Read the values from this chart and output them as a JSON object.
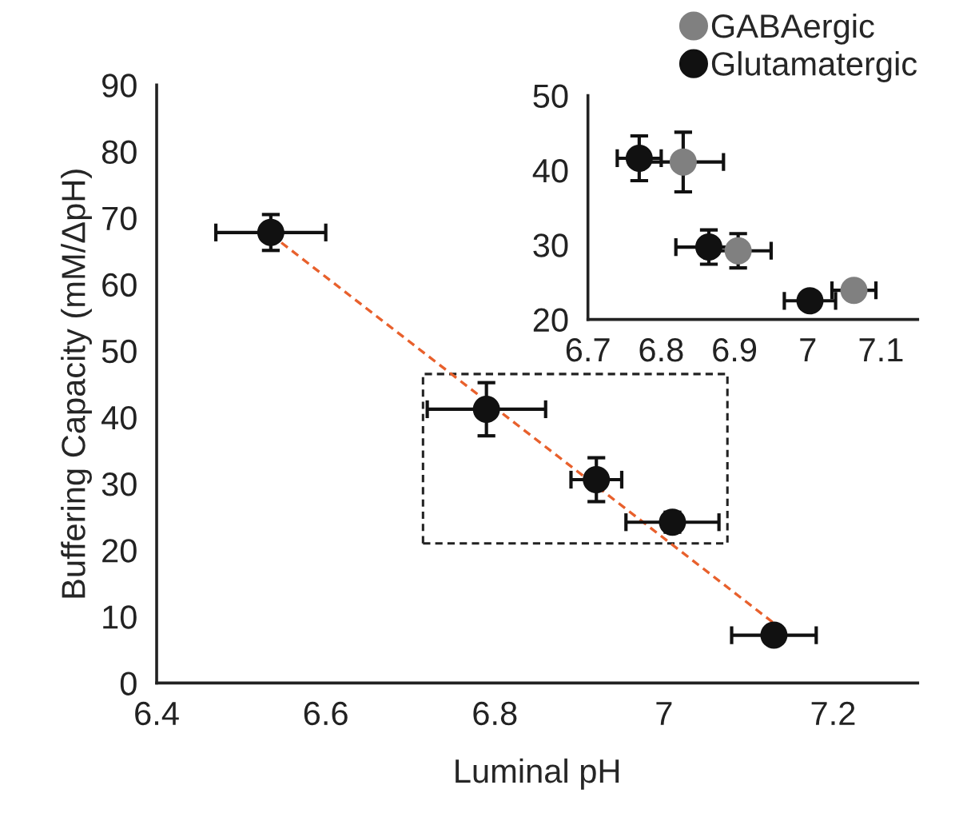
{
  "chart_data": [
    {
      "type": "scatter",
      "xlabel": "Luminal pH",
      "ylabel": "Buffering Capacity (mM/ΔpH)",
      "xlim": [
        6.4,
        7.3
      ],
      "ylim": [
        0,
        90
      ],
      "xticks": [
        6.4,
        6.6,
        6.8,
        7,
        7.2
      ],
      "yticks": [
        0,
        10,
        20,
        30,
        40,
        50,
        60,
        70,
        80,
        90
      ],
      "series": [
        {
          "type": "line",
          "color": "#e8602c",
          "line_style": "dashed",
          "marker": "none",
          "x": [
            6.535,
            7.13
          ],
          "values": [
            67.5,
            9
          ]
        },
        {
          "color": "#111111",
          "marker": "circle",
          "x": [
            6.535,
            6.79,
            6.92,
            7.01,
            7.13
          ],
          "values": [
            67.8,
            41.2,
            30.6,
            24.2,
            7.2
          ],
          "errors": [
            2.7,
            4,
            3.3,
            1.5,
            null
          ],
          "xerrors": [
            0.065,
            0.07,
            0.03,
            0.055,
            0.05
          ]
        }
      ]
    },
    {
      "type": "scatter",
      "xlim": [
        6.7,
        7.15
      ],
      "ylim": [
        20,
        50
      ],
      "xticks": [
        6.7,
        6.8,
        6.9,
        7,
        7.1
      ],
      "yticks": [
        20,
        30,
        40,
        50
      ],
      "legend": "top right",
      "series": [
        {
          "name": "GABAergic",
          "color": "#808080",
          "marker": "circle",
          "x": [
            6.83,
            6.905,
            7.063
          ],
          "values": [
            41.1,
            29.2,
            23.9
          ],
          "errors": [
            4,
            2.3,
            1
          ],
          "xerrors": [
            0.055,
            0.045,
            0.03
          ]
        },
        {
          "name": "Glutamatergic",
          "color": "#111111",
          "marker": "circle",
          "x": [
            6.77,
            6.865,
            7.003
          ],
          "values": [
            41.6,
            29.7,
            22.5
          ],
          "errors": [
            3,
            2.3,
            1
          ],
          "xerrors": [
            0.03,
            0.045,
            0.035
          ]
        }
      ]
    }
  ]
}
